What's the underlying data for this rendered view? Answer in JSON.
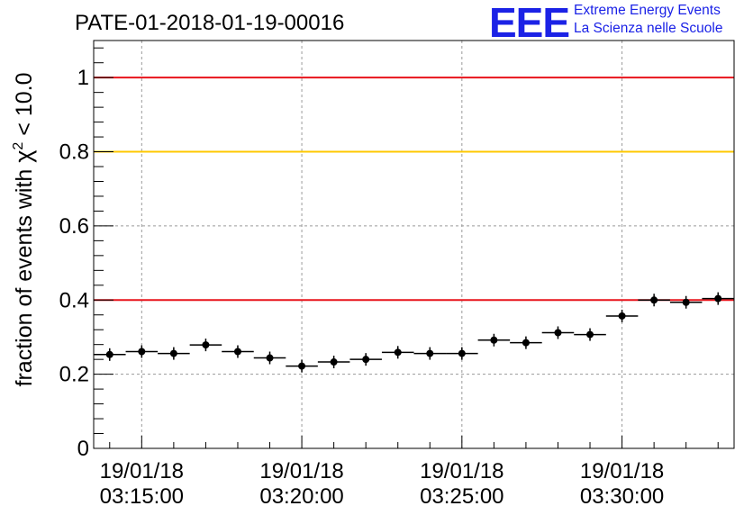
{
  "logo": {
    "mark": "EEE",
    "line1": "Extreme Energy Events",
    "line2": "La Scienza nelle Scuole"
  },
  "chart_data": {
    "type": "scatter",
    "title": "PATE-01-2018-01-19-00016",
    "ylabel": "fraction of events with χ² < 10.0",
    "ylabel_parts": {
      "main": "fraction of events with ",
      "symbol": "χ",
      "sup": "2",
      "tail": " < 10.0"
    },
    "xlabel": "",
    "ylim": [
      0,
      1.1
    ],
    "yticks": [
      0,
      0.2,
      0.4,
      0.6,
      0.8,
      1
    ],
    "ytick_labels": [
      "0",
      "0.2",
      "0.4",
      "0.6",
      "0.8",
      "1"
    ],
    "xlim": [
      "03:13:30",
      "03:33:30"
    ],
    "xticks": [
      {
        "date": "19/01/18",
        "time": "03:15:00"
      },
      {
        "date": "19/01/18",
        "time": "03:20:00"
      },
      {
        "date": "19/01/18",
        "time": "03:25:00"
      },
      {
        "date": "19/01/18",
        "time": "03:30:00"
      }
    ],
    "grid": true,
    "bin_width_seconds": 60,
    "reference_lines": [
      {
        "y": 1.0,
        "color": "#e8141c"
      },
      {
        "y": 0.8,
        "color": "#ffc800"
      },
      {
        "y": 0.4,
        "color": "#e8141c"
      }
    ],
    "points": [
      {
        "x": "03:14:00",
        "y": 0.253
      },
      {
        "x": "03:15:00",
        "y": 0.261
      },
      {
        "x": "03:16:00",
        "y": 0.256
      },
      {
        "x": "03:17:00",
        "y": 0.279
      },
      {
        "x": "03:18:00",
        "y": 0.261
      },
      {
        "x": "03:19:00",
        "y": 0.244
      },
      {
        "x": "03:20:00",
        "y": 0.222
      },
      {
        "x": "03:21:00",
        "y": 0.233
      },
      {
        "x": "03:22:00",
        "y": 0.24
      },
      {
        "x": "03:23:00",
        "y": 0.259
      },
      {
        "x": "03:24:00",
        "y": 0.256
      },
      {
        "x": "03:25:00",
        "y": 0.256
      },
      {
        "x": "03:26:00",
        "y": 0.292
      },
      {
        "x": "03:27:00",
        "y": 0.285
      },
      {
        "x": "03:28:00",
        "y": 0.312
      },
      {
        "x": "03:29:00",
        "y": 0.307
      },
      {
        "x": "03:30:00",
        "y": 0.357
      },
      {
        "x": "03:31:00",
        "y": 0.4
      },
      {
        "x": "03:32:00",
        "y": 0.394
      },
      {
        "x": "03:33:00",
        "y": 0.404
      }
    ],
    "marker_color": "#000000"
  }
}
